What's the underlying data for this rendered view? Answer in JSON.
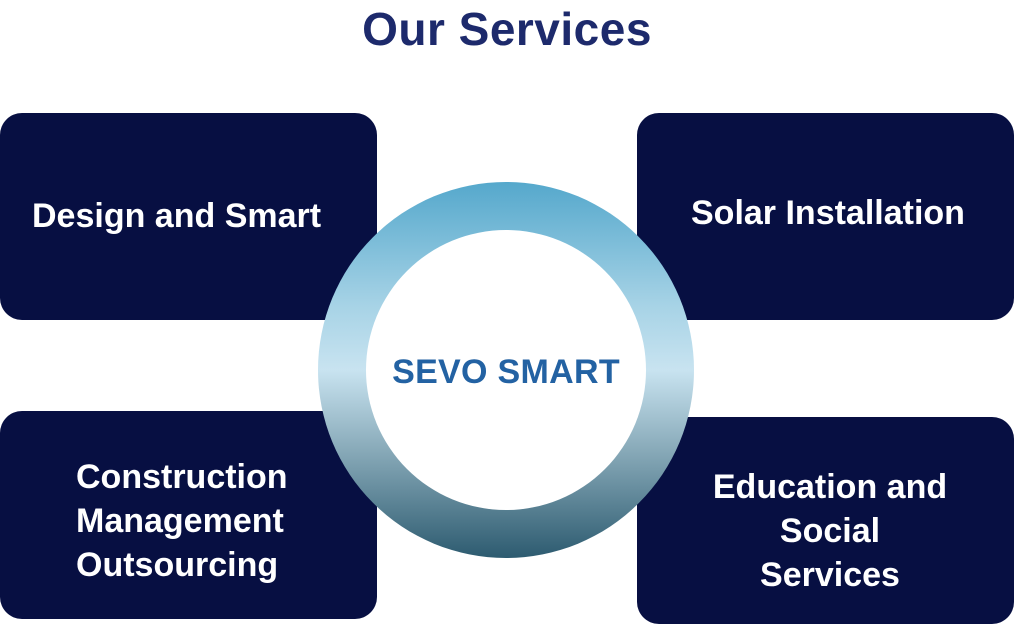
{
  "title": "Our Services",
  "center": {
    "label": "SEVO SMART"
  },
  "services": {
    "top_left": "Design and Smart",
    "top_right": "Solar Installation",
    "bottom_left": "Construction\nManagement\nOutsourcing",
    "bottom_right": "Education and\nSocial\nServices"
  },
  "colors": {
    "title": "#1d2a6c",
    "card_background": "#070f42",
    "card_text": "#ffffff",
    "center_text": "#2362a3",
    "ring_top": "#55a8cc",
    "ring_middle": "#c8e3f0",
    "ring_bottom": "#2d5b70"
  }
}
